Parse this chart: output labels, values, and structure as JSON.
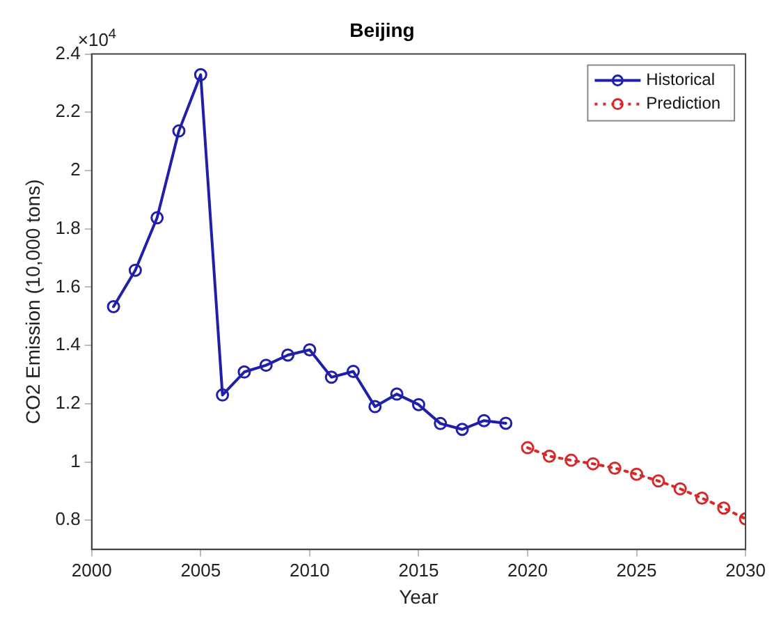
{
  "chart_data": {
    "type": "line",
    "title": "Beijing",
    "xlabel": "Year",
    "ylabel": "CO2 Emission (10,000 tons)",
    "annotations": [
      "×10$^{4}$"
    ],
    "xlim": [
      2000,
      2030
    ],
    "xticks": [
      2000,
      2005,
      2010,
      2015,
      2020,
      2025,
      2030
    ],
    "ylim": [
      0.7,
      2.4
    ],
    "yticks": [
      0.8,
      1,
      1.2,
      1.4,
      1.6,
      1.8,
      2,
      2.2,
      2.4
    ],
    "grid": false,
    "legend": "top right",
    "marker": "circle",
    "series": [
      {
        "name": "Historical",
        "color": "#1f1fa8",
        "line_style": "solid",
        "x": [
          2001,
          2002,
          2003,
          2004,
          2005,
          2006,
          2007,
          2008,
          2009,
          2010,
          2011,
          2012,
          2013,
          2014,
          2015,
          2016,
          2017,
          2018,
          2019
        ],
        "values": [
          1.533,
          1.658,
          1.838,
          2.136,
          2.329,
          1.23,
          1.309,
          1.332,
          1.367,
          1.385,
          1.291,
          1.311,
          1.19,
          1.233,
          1.197,
          1.132,
          1.112,
          1.142,
          1.133
        ]
      },
      {
        "name": "Prediction",
        "color": "#d42a2a",
        "line_style": "dotted",
        "x": [
          2020,
          2021,
          2022,
          2023,
          2024,
          2025,
          2026,
          2027,
          2028,
          2029,
          2030
        ],
        "values": [
          1.049,
          1.02,
          1.006,
          0.994,
          0.979,
          0.958,
          0.935,
          0.908,
          0.876,
          0.842,
          0.805
        ]
      }
    ]
  }
}
